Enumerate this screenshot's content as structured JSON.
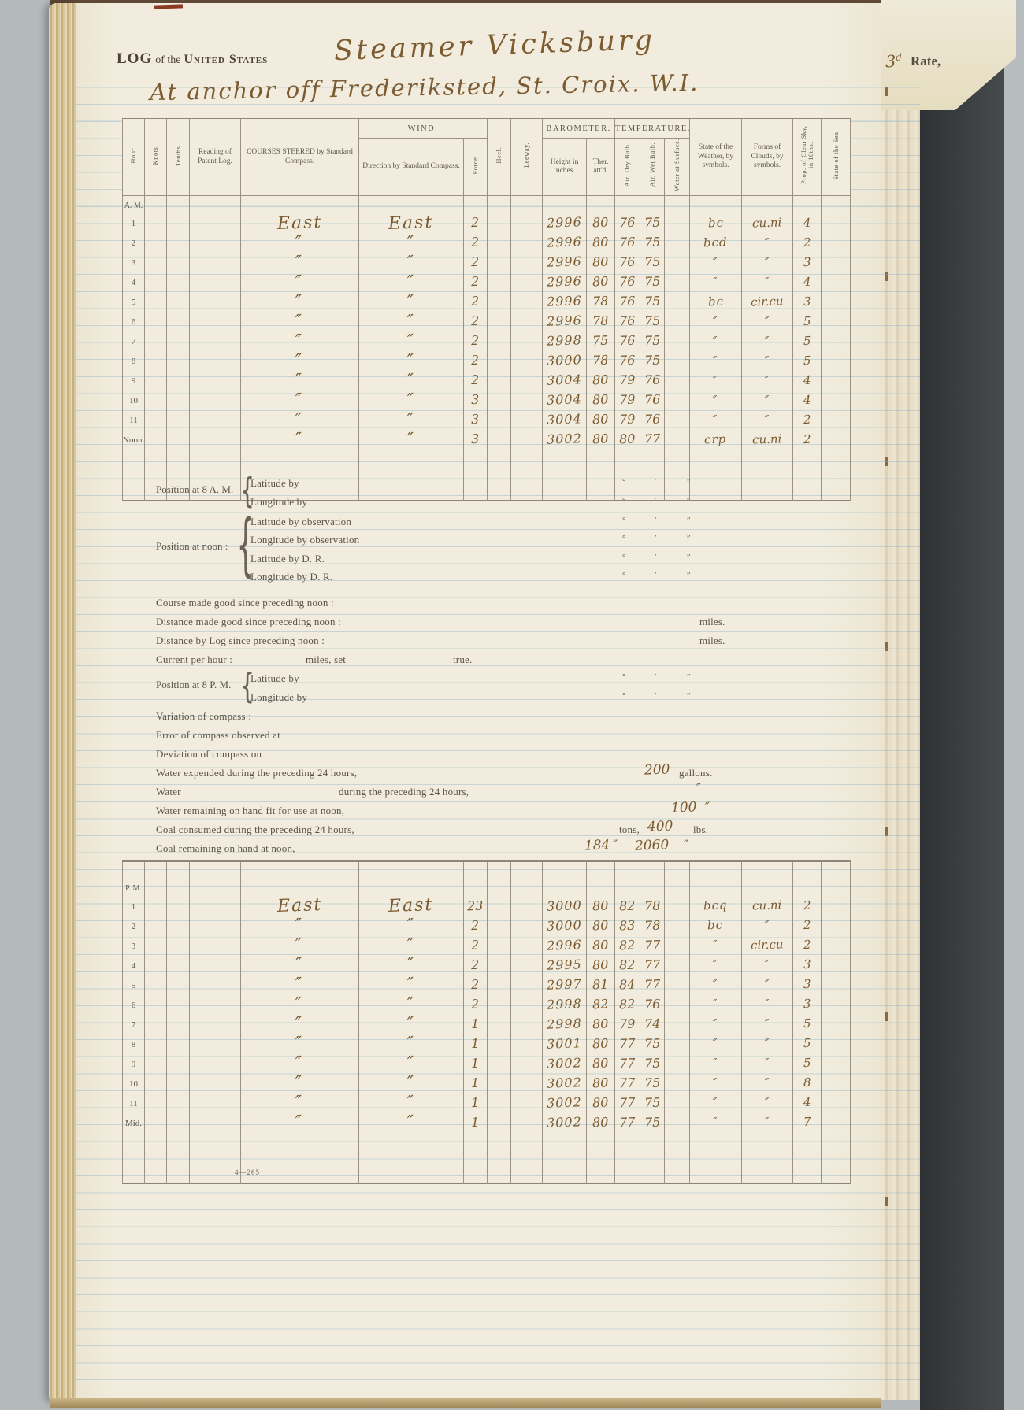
{
  "colors": {
    "page_cream": "#f1ecdd",
    "ruled_line_blue": "rgba(126,172,198,0.38)",
    "ink_brown": "#7d5b31",
    "printed_gray": "#5c5446",
    "background_gray": "#b4babc"
  },
  "glyphs": {
    "brace": "{"
  },
  "page": {
    "header": {
      "log_word": "LOG",
      "of_the": "of the",
      "united_states": "United States",
      "vessel_handwritten": "Steamer Vicksburg",
      "rate_number": "3",
      "rate_suffix": "d",
      "rate_printed": "Rate,",
      "location_handwritten": "At anchor off Frederiksted, St. Croix. W.I."
    },
    "log_table": {
      "columns": {
        "hour": "Hour.",
        "knots": "Knots.",
        "tenths": "Tenths.",
        "patent": "Reading of Patent Log.",
        "courses": "COURSES STEERED by Standard Compass.",
        "wind_group": "WIND.",
        "wind_direction": "Direction by Standard Compass.",
        "force": "Force.",
        "heel": "Heel.",
        "leeway": "Leeway.",
        "barometer_group": "BAROMETER.",
        "height": "Height in inches.",
        "ther": "Ther. att'd.",
        "temperature_group": "TEMPERATURE.",
        "dry": "Air, Dry Bulb.",
        "wet": "Air, Wet Bulb.",
        "water": "Water at Surface.",
        "weather": "State of the Weather, by symbols.",
        "clouds": "Forms of Clouds, by symbols.",
        "sky": "Prop. of Clear Sky, in 10ths.",
        "sea": "State of the Sea."
      },
      "am_rows": [
        {
          "hour": "A. M.",
          "_label": true
        },
        {
          "hour": "1",
          "course": "East",
          "wind": "East",
          "force": "2",
          "bar": "2996",
          "ther": "80",
          "dry": "76",
          "wet": "75",
          "weather": "bc",
          "clouds": "cu.ni",
          "sky": "4"
        },
        {
          "hour": "2",
          "course": "″",
          "wind": "″",
          "force": "2",
          "bar": "2996",
          "ther": "80",
          "dry": "76",
          "wet": "75",
          "weather": "bcd",
          "clouds": "″",
          "sky": "2"
        },
        {
          "hour": "3",
          "course": "″",
          "wind": "″",
          "force": "2",
          "bar": "2996",
          "ther": "80",
          "dry": "76",
          "wet": "75",
          "weather": "″",
          "clouds": "″",
          "sky": "3"
        },
        {
          "hour": "4",
          "course": "″",
          "wind": "″",
          "force": "2",
          "bar": "2996",
          "ther": "80",
          "dry": "76",
          "wet": "75",
          "weather": "″",
          "clouds": "″",
          "sky": "4"
        },
        {
          "hour": "5",
          "course": "″",
          "wind": "″",
          "force": "2",
          "bar": "2996",
          "ther": "78",
          "dry": "76",
          "wet": "75",
          "weather": "bc",
          "clouds": "cir.cu",
          "sky": "3"
        },
        {
          "hour": "6",
          "course": "″",
          "wind": "″",
          "force": "2",
          "bar": "2996",
          "ther": "78",
          "dry": "76",
          "wet": "75",
          "weather": "″",
          "clouds": "″",
          "sky": "5"
        },
        {
          "hour": "7",
          "course": "″",
          "wind": "″",
          "force": "2",
          "bar": "2998",
          "ther": "75",
          "dry": "76",
          "wet": "75",
          "weather": "″",
          "clouds": "″",
          "sky": "5"
        },
        {
          "hour": "8",
          "course": "″",
          "wind": "″",
          "force": "2",
          "bar": "3000",
          "ther": "78",
          "dry": "76",
          "wet": "75",
          "weather": "″",
          "clouds": "″",
          "sky": "5"
        },
        {
          "hour": "9",
          "course": "″",
          "wind": "″",
          "force": "2",
          "bar": "3004",
          "ther": "80",
          "dry": "79",
          "wet": "76",
          "weather": "″",
          "clouds": "″",
          "sky": "4"
        },
        {
          "hour": "10",
          "course": "″",
          "wind": "″",
          "force": "3",
          "bar": "3004",
          "ther": "80",
          "dry": "79",
          "wet": "76",
          "weather": "″",
          "clouds": "″",
          "sky": "4"
        },
        {
          "hour": "11",
          "course": "″",
          "wind": "″",
          "force": "3",
          "bar": "3004",
          "ther": "80",
          "dry": "79",
          "wet": "76",
          "weather": "″",
          "clouds": "″",
          "sky": "2"
        },
        {
          "hour": "Noon.",
          "course": "″",
          "wind": "″",
          "force": "3",
          "bar": "3002",
          "ther": "80",
          "dry": "80",
          "wet": "77",
          "weather": "crp",
          "clouds": "cu.ni",
          "sky": "2"
        },
        {},
        {},
        {}
      ],
      "pm_rows": [
        {},
        {
          "hour": "P. M.",
          "_label": true
        },
        {
          "hour": "1",
          "course": "East",
          "wind": "East",
          "force": "23",
          "bar": "3000",
          "ther": "80",
          "dry": "82",
          "wet": "78",
          "weather": "bcq",
          "clouds": "cu.ni",
          "sky": "2"
        },
        {
          "hour": "2",
          "course": "″",
          "wind": "″",
          "force": "2",
          "bar": "3000",
          "ther": "80",
          "dry": "83",
          "wet": "78",
          "weather": "bc",
          "clouds": "″",
          "sky": "2"
        },
        {
          "hour": "3",
          "course": "″",
          "wind": "″",
          "force": "2",
          "bar": "2996",
          "ther": "80",
          "dry": "82",
          "wet": "77",
          "weather": "″",
          "clouds": "cir.cu",
          "sky": "2"
        },
        {
          "hour": "4",
          "course": "″",
          "wind": "″",
          "force": "2",
          "bar": "2995",
          "ther": "80",
          "dry": "82",
          "wet": "77",
          "weather": "″",
          "clouds": "″",
          "sky": "3"
        },
        {
          "hour": "5",
          "course": "″",
          "wind": "″",
          "force": "2",
          "bar": "2997",
          "ther": "81",
          "dry": "84",
          "wet": "77",
          "weather": "″",
          "clouds": "″",
          "sky": "3"
        },
        {
          "hour": "6",
          "course": "″",
          "wind": "″",
          "force": "2",
          "bar": "2998",
          "ther": "82",
          "dry": "82",
          "wet": "76",
          "weather": "″",
          "clouds": "″",
          "sky": "3"
        },
        {
          "hour": "7",
          "course": "″",
          "wind": "″",
          "force": "1",
          "bar": "2998",
          "ther": "80",
          "dry": "79",
          "wet": "74",
          "weather": "″",
          "clouds": "″",
          "sky": "5"
        },
        {
          "hour": "8",
          "course": "″",
          "wind": "″",
          "force": "1",
          "bar": "3001",
          "ther": "80",
          "dry": "77",
          "wet": "75",
          "weather": "″",
          "clouds": "″",
          "sky": "5"
        },
        {
          "hour": "9",
          "course": "″",
          "wind": "″",
          "force": "1",
          "bar": "3002",
          "ther": "80",
          "dry": "77",
          "wet": "75",
          "weather": "″",
          "clouds": "″",
          "sky": "5"
        },
        {
          "hour": "10",
          "course": "″",
          "wind": "″",
          "force": "1",
          "bar": "3002",
          "ther": "80",
          "dry": "77",
          "wet": "75",
          "weather": "″",
          "clouds": "″",
          "sky": "8"
        },
        {
          "hour": "11",
          "course": "″",
          "wind": "″",
          "force": "1",
          "bar": "3002",
          "ther": "80",
          "dry": "77",
          "wet": "75",
          "weather": "″",
          "clouds": "″",
          "sky": "4"
        },
        {
          "hour": "Mid.",
          "course": "″",
          "wind": "″",
          "force": "1",
          "bar": "3002",
          "ther": "80",
          "dry": "77",
          "wet": "75",
          "weather": "″",
          "clouds": "″",
          "sky": "7"
        },
        {},
        {},
        {}
      ]
    },
    "position_section": {
      "pos_8am_label": "Position at 8 A. M.",
      "pos_8am_lines": [
        "Latitude by",
        "Longitude by"
      ],
      "pos_noon_label": "Position at noon :",
      "pos_noon_lines": [
        "Latitude by observation",
        "Longitude by observation",
        "Latitude by D. R.",
        "Longitude by D. R."
      ],
      "pos_8pm_label": "Position at 8 P. M.",
      "pos_8pm_lines": [
        "Latitude by",
        "Longitude by"
      ],
      "deg_marks": [
        "°",
        "′",
        "″"
      ],
      "course_made_good": "Course made good since preceding noon :",
      "distance_made_good": "Distance made good since preceding noon :",
      "distance_by_log": "Distance by Log since preceding noon :",
      "miles_label": "miles.",
      "current_per_hour": "Current per hour :",
      "miles_set": "miles, set",
      "true_label": "true.",
      "variation": "Variation of compass :",
      "error": "Error of compass observed at",
      "deviation": "Deviation of compass on"
    },
    "consumption_section": {
      "water_expended": "Water expended during the preceding 24 hours,",
      "water_expended_value": "200",
      "gallons_label": "gallons.",
      "water_blank_label": "Water",
      "water_blank_rest": "during the preceding 24 hours,",
      "water_blank_value": "″",
      "water_remaining": "Water remaining on hand fit for use at noon,",
      "water_remaining_value": "100",
      "water_remaining_unit": "″",
      "coal_consumed": "Coal consumed during the preceding 24 hours,",
      "tons_label": "tons,",
      "coal_consumed_value": "400",
      "lbs_label": "lbs.",
      "coal_remaining": "Coal remaining on hand at noon,",
      "coal_remaining_tons": "184",
      "coal_ditto1": "″",
      "coal_remaining_lbs": "2060",
      "coal_ditto2": "″"
    },
    "footer_plate": "4—265"
  }
}
